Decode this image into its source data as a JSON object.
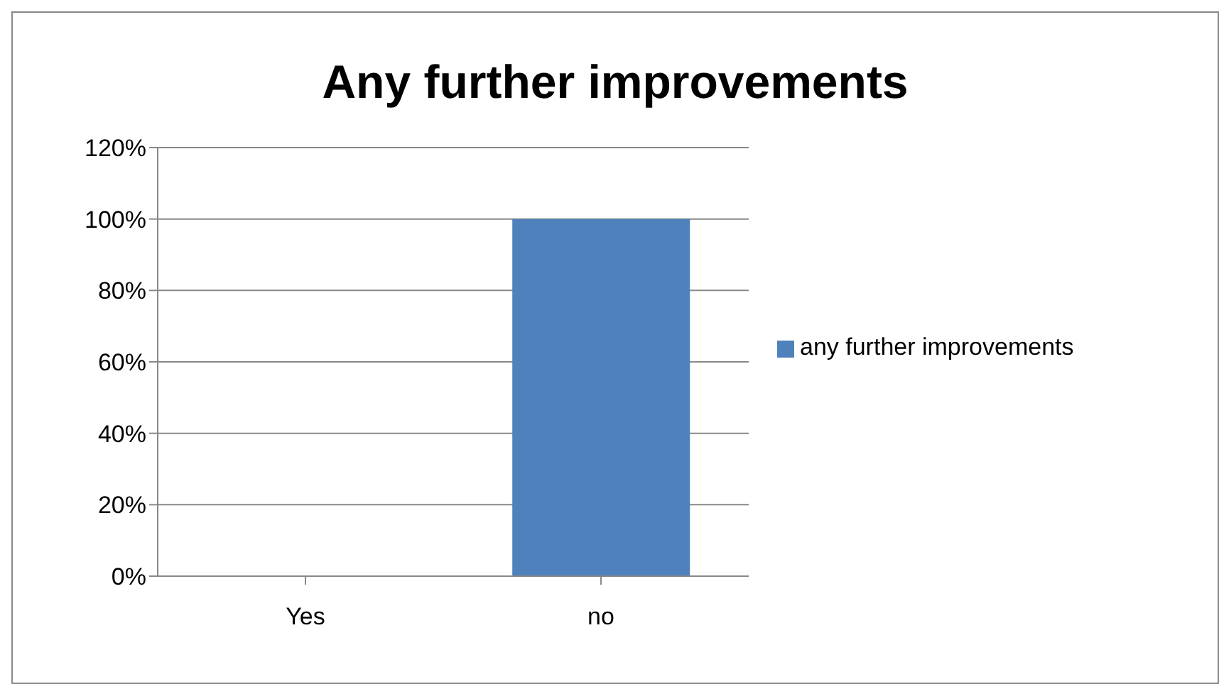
{
  "chart_data": {
    "type": "bar",
    "title": "Any further improvements",
    "categories": [
      "Yes",
      "no"
    ],
    "series": [
      {
        "name": "any further improvements",
        "color": "#4f81bd",
        "values": [
          0,
          100
        ]
      }
    ],
    "ylim": [
      0,
      120
    ],
    "yticks": [
      {
        "value": 0,
        "label": "0%"
      },
      {
        "value": 20,
        "label": "20%"
      },
      {
        "value": 40,
        "label": "40%"
      },
      {
        "value": 60,
        "label": "60%"
      },
      {
        "value": 80,
        "label": "80%"
      },
      {
        "value": 100,
        "label": "100%"
      },
      {
        "value": 120,
        "label": "120%"
      }
    ],
    "grid": "y",
    "legend": "right"
  }
}
